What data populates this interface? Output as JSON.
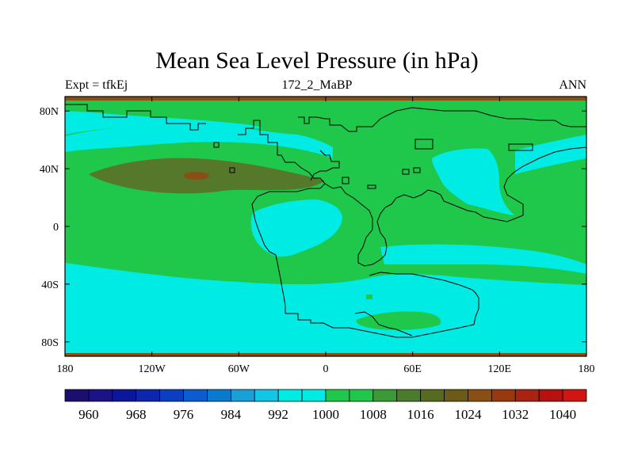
{
  "title": "Mean Sea Level Pressure (in hPa)",
  "subtitle_left": "Expt = tfkEj",
  "subtitle_center": "172_2_MaBP",
  "subtitle_right": "ANN",
  "colors": {
    "cyan": "#00ebe4",
    "green": "#1fc84a",
    "dark_green": "#56782b",
    "brown_edge": "#8a4f14",
    "coast": "#000000"
  },
  "chart_data": {
    "type": "heatmap",
    "projection": "cylindrical-equidistant",
    "x_ticks": [
      "180",
      "120W",
      "60W",
      "0",
      "60E",
      "120E",
      "180"
    ],
    "y_ticks": [
      "80N",
      "40N",
      "0",
      "40S",
      "80S"
    ],
    "xlim": [
      -180,
      180
    ],
    "ylim": [
      -90,
      90
    ],
    "colorbar": {
      "labels": [
        "960",
        "968",
        "976",
        "984",
        "992",
        "1000",
        "1008",
        "1016",
        "1024",
        "1032",
        "1040"
      ],
      "levels": [
        956,
        960,
        964,
        968,
        972,
        976,
        980,
        984,
        988,
        992,
        996,
        1000,
        1004,
        1008,
        1012,
        1016,
        1020,
        1024,
        1028,
        1032,
        1036,
        1040,
        1044
      ],
      "colors": [
        "#1a0f6e",
        "#1b1288",
        "#0b169c",
        "#0d26ad",
        "#0a3fc4",
        "#0a5cd0",
        "#0a7acf",
        "#1a9fd9",
        "#12c7e6",
        "#00ebe4",
        "#00ebe4",
        "#1fc84a",
        "#1fc84a",
        "#3a9a35",
        "#4a7c2c",
        "#566a20",
        "#6b5a18",
        "#8a4f14",
        "#9a3810",
        "#a82410",
        "#b8100e",
        "#d11510"
      ]
    }
  }
}
